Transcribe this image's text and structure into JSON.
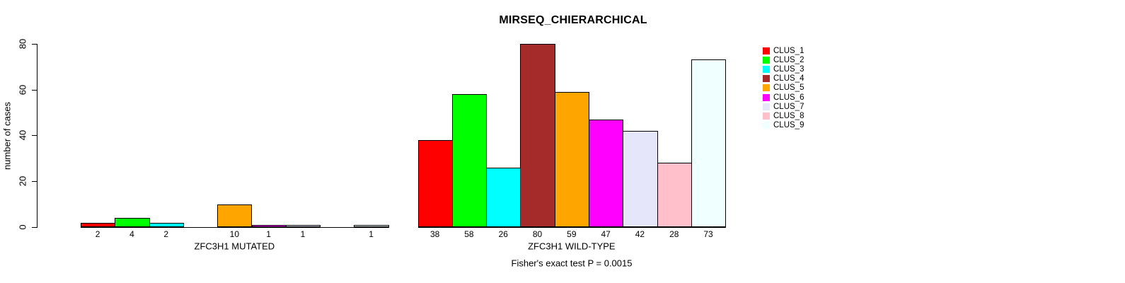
{
  "chart_data": {
    "type": "bar",
    "title": "MIRSEQ_CHIERARCHICAL",
    "ylabel": "number of cases",
    "ylim": [
      0,
      80
    ],
    "yticks": [
      0,
      20,
      40,
      60,
      80
    ],
    "grid": false,
    "legend_position": "right",
    "annotation": "Fisher's exact test P = 0.0015",
    "clusters": [
      {
        "name": "CLUS_1",
        "color": "#FF0000"
      },
      {
        "name": "CLUS_2",
        "color": "#00FF00"
      },
      {
        "name": "CLUS_3",
        "color": "#00FFFF"
      },
      {
        "name": "CLUS_4",
        "color": "#A52A2A"
      },
      {
        "name": "CLUS_5",
        "color": "#FFA500"
      },
      {
        "name": "CLUS_6",
        "color": "#FF00FF"
      },
      {
        "name": "CLUS_7",
        "color": "#E6E6FA"
      },
      {
        "name": "CLUS_8",
        "color": "#FFC0CB"
      },
      {
        "name": "CLUS_9",
        "color": "#F0FFFF"
      }
    ],
    "groups": [
      {
        "label": "ZFC3H1 MUTATED",
        "values": [
          2,
          4,
          2,
          0,
          10,
          1,
          1,
          0,
          1
        ]
      },
      {
        "label": "ZFC3H1 WILD-TYPE",
        "values": [
          38,
          58,
          26,
          80,
          59,
          47,
          42,
          28,
          73
        ]
      }
    ]
  }
}
